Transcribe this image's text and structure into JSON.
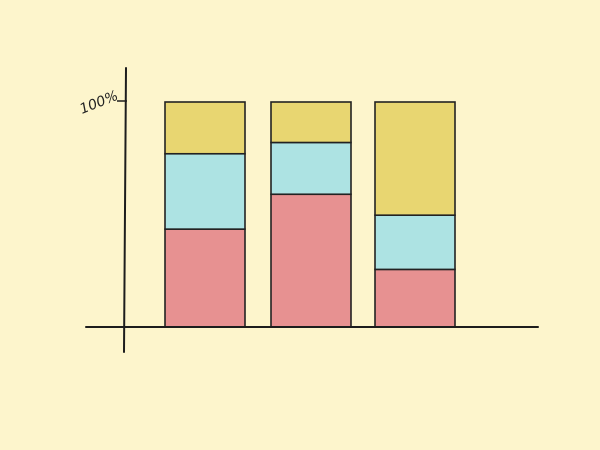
{
  "chart_data": {
    "type": "bar",
    "stacked": true,
    "normalized": true,
    "title": "",
    "xlabel": "",
    "ylabel": "",
    "ylim": [
      0,
      100
    ],
    "ytick_label": "100%",
    "categories": [
      "",
      "",
      ""
    ],
    "grid": false,
    "legend": "none",
    "series": [
      {
        "color": "#e79191",
        "values": [
          43.5,
          59,
          25.6
        ]
      },
      {
        "color": "#ade3e3",
        "values": [
          33.5,
          23,
          24.1
        ]
      },
      {
        "color": "#e8d671",
        "values": [
          23,
          18,
          50.3
        ]
      }
    ]
  }
}
